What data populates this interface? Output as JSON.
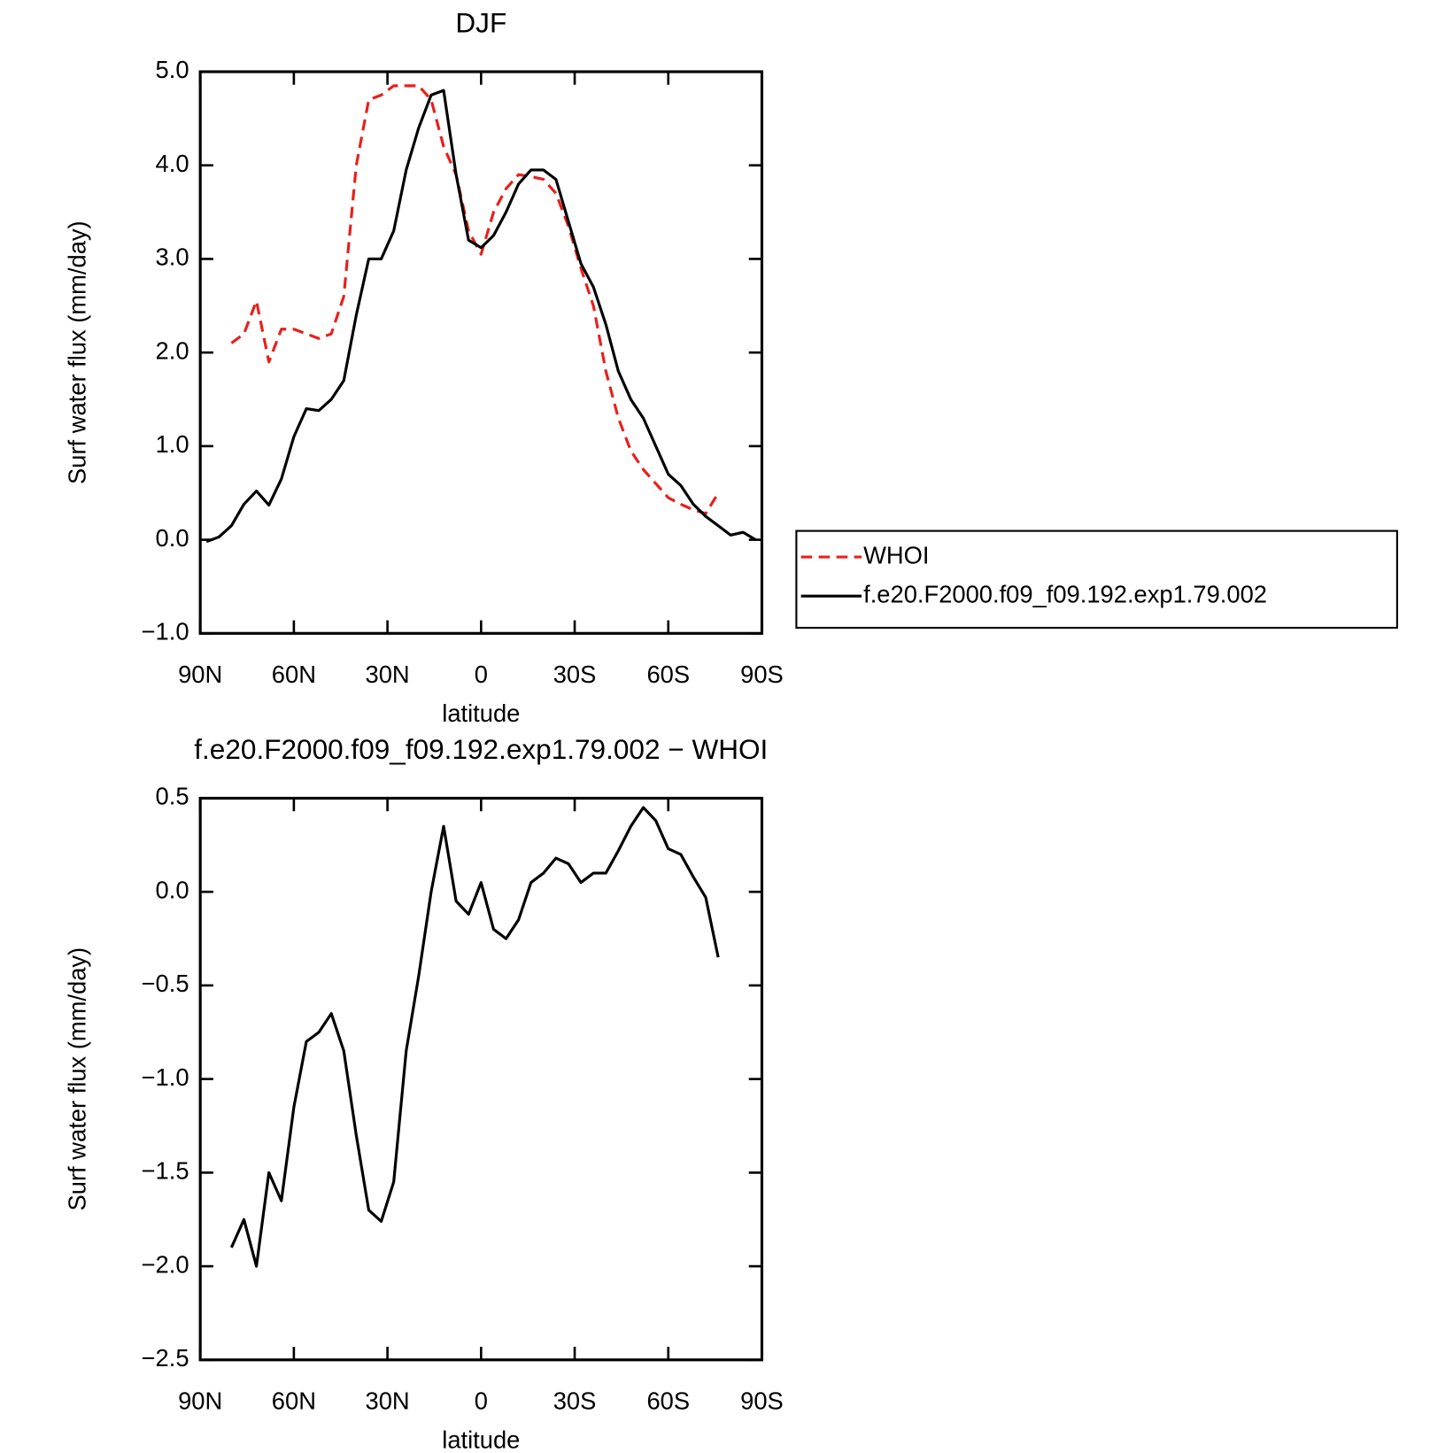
{
  "chart_data": [
    {
      "type": "line",
      "title": "DJF",
      "xlabel": "latitude",
      "ylabel": "Surf water flux (mm/day)",
      "x": [
        88,
        84,
        80,
        76,
        72,
        68,
        64,
        60,
        56,
        52,
        48,
        44,
        40,
        36,
        32,
        28,
        24,
        20,
        16,
        12,
        8,
        4,
        0,
        -4,
        -8,
        -12,
        -16,
        -20,
        -24,
        -28,
        -32,
        -36,
        -40,
        -44,
        -48,
        -52,
        -56,
        -60,
        -64,
        -68,
        -72,
        -76,
        -80,
        -84,
        -88
      ],
      "xlim": [
        90,
        -90
      ],
      "xticks": [
        {
          "value": 90,
          "label": "90N"
        },
        {
          "value": 60,
          "label": "60N"
        },
        {
          "value": 30,
          "label": "30N"
        },
        0,
        {
          "value": -30,
          "label": "30S"
        },
        {
          "value": -60,
          "label": "60S"
        },
        {
          "value": -90,
          "label": "90S"
        }
      ],
      "ylim": [
        -1,
        5
      ],
      "yticks": [
        {
          "value": -1,
          "label": "−1.0"
        },
        {
          "value": 0,
          "label": "0.0"
        },
        {
          "value": 1,
          "label": "1.0"
        },
        {
          "value": 2,
          "label": "2.0"
        },
        {
          "value": 3,
          "label": "3.0"
        },
        {
          "value": 4,
          "label": "4.0"
        },
        {
          "value": 5,
          "label": "5.0"
        }
      ],
      "legend": "right",
      "series": [
        {
          "name": "WHOI",
          "color": "#e8201c",
          "dashed": true,
          "values": [
            null,
            null,
            2.1,
            2.2,
            2.55,
            1.9,
            2.25,
            2.25,
            2.2,
            2.15,
            2.2,
            2.6,
            4.0,
            4.7,
            4.75,
            4.85,
            4.85,
            4.85,
            4.7,
            4.2,
            3.9,
            3.3,
            3.05,
            3.5,
            3.75,
            3.9,
            3.88,
            3.85,
            3.7,
            3.35,
            2.9,
            2.5,
            1.8,
            1.3,
            0.95,
            0.75,
            0.6,
            0.45,
            0.38,
            0.32,
            0.28,
            0.5,
            null,
            null,
            null
          ]
        },
        {
          "name": "f.e20.F2000.f09_f09.192.exp1.79.002",
          "color": "#000000",
          "dashed": false,
          "values": [
            -0.02,
            0.03,
            0.15,
            0.38,
            0.52,
            0.37,
            0.65,
            1.1,
            1.4,
            1.38,
            1.5,
            1.7,
            2.4,
            3.0,
            3.0,
            3.3,
            3.95,
            4.4,
            4.75,
            4.8,
            3.9,
            3.2,
            3.12,
            3.25,
            3.5,
            3.8,
            3.95,
            3.95,
            3.85,
            3.4,
            2.95,
            2.7,
            2.3,
            1.8,
            1.5,
            1.3,
            1.0,
            0.7,
            0.58,
            0.38,
            0.25,
            0.15,
            0.05,
            0.08,
            0.0
          ]
        }
      ]
    },
    {
      "type": "line",
      "title": "f.e20.F2000.f09_f09.192.exp1.79.002 − WHOI",
      "xlabel": "latitude",
      "ylabel": "Surf water flux (mm/day)",
      "x": [
        88,
        84,
        80,
        76,
        72,
        68,
        64,
        60,
        56,
        52,
        48,
        44,
        40,
        36,
        32,
        28,
        24,
        20,
        16,
        12,
        8,
        4,
        0,
        -4,
        -8,
        -12,
        -16,
        -20,
        -24,
        -28,
        -32,
        -36,
        -40,
        -44,
        -48,
        -52,
        -56,
        -60,
        -64,
        -68,
        -72,
        -76,
        -80,
        -84,
        -88
      ],
      "xlim": [
        90,
        -90
      ],
      "xticks": [
        {
          "value": 90,
          "label": "90N"
        },
        {
          "value": 60,
          "label": "60N"
        },
        {
          "value": 30,
          "label": "30N"
        },
        0,
        {
          "value": -30,
          "label": "30S"
        },
        {
          "value": -60,
          "label": "60S"
        },
        {
          "value": -90,
          "label": "90S"
        }
      ],
      "ylim": [
        -2.5,
        0.5
      ],
      "yticks": [
        {
          "value": -2.5,
          "label": "−2.5"
        },
        {
          "value": -2,
          "label": "−2.0"
        },
        {
          "value": -1.5,
          "label": "−1.5"
        },
        {
          "value": -1,
          "label": "−1.0"
        },
        {
          "value": -0.5,
          "label": "−0.5"
        },
        {
          "value": 0,
          "label": "0.0"
        },
        0.5
      ],
      "color": "#000000",
      "values": [
        null,
        null,
        -1.9,
        -1.75,
        -2.0,
        -1.5,
        -1.65,
        -1.15,
        -0.8,
        -0.75,
        -0.65,
        -0.85,
        -1.3,
        -1.7,
        -1.76,
        -1.55,
        -0.85,
        -0.45,
        0.0,
        0.35,
        -0.05,
        -0.12,
        0.05,
        -0.2,
        -0.25,
        -0.15,
        0.05,
        0.1,
        0.18,
        0.15,
        0.05,
        0.1,
        0.1,
        0.22,
        0.35,
        0.45,
        0.38,
        0.23,
        0.2,
        0.08,
        -0.03,
        -0.35,
        null,
        null,
        null
      ]
    }
  ]
}
